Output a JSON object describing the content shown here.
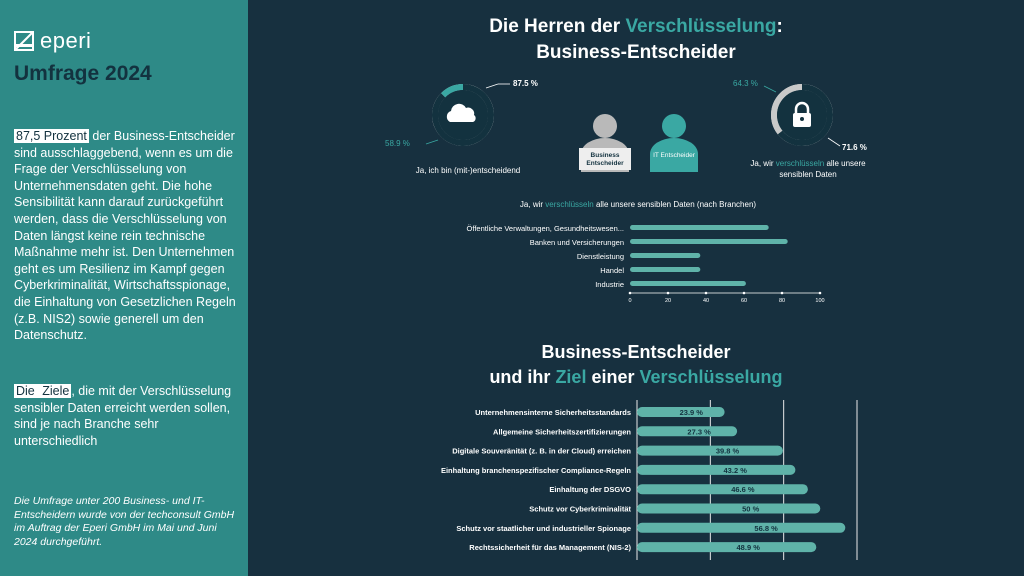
{
  "sidebar": {
    "logo_text": "eperi",
    "title": "Umfrage 2024",
    "p1_highlight": "87,5 Prozent",
    "p1_text": " der Business-Entscheider sind ausschlaggebend, wenn es um die Frage der Verschlüsselung von Unternehmensdaten geht. Die hohe Sensibilität kann darauf zurückgeführt werden, dass die Verschlüsselung von Daten längst keine rein technische Maßnahme mehr ist. Den Unternehmen geht es um Resilienz im Kampf gegen Cyberkriminalität, Wirtschaftsspionage, die Einhaltung von Gesetzlichen Regeln (z.B. NIS2) sowie generell um den Datenschutz.",
    "p2_pre": "Die ",
    "p2_highlight": "Ziele",
    "p2_text": ", die mit der Verschlüsselung sensibler Daten erreicht werden sollen, sind je nach Branche sehr unterschiedlich",
    "note": "Die Umfrage unter 200 Business- und IT-Entscheidern wurde von der techconsult GmbH im Auftrag der Eperi GmbH im Mai und Juni 2024 durchgeführt."
  },
  "heading1": {
    "pre": "Die Herren der ",
    "accent": "Verschlüsselung",
    "post": ":",
    "line2": "Business-Entscheider"
  },
  "heading2": {
    "line1": "Business-Entscheider",
    "pre": "und ihr ",
    "accent1": "Ziel",
    "mid": " einer ",
    "accent2": "Verschlüsselung"
  },
  "colors": {
    "accent": "#3aa8a3",
    "bar": "#5fb3a9",
    "bg": "#17303f",
    "sidebar": "#2e8a87",
    "ring_grey": "#c9c9c9"
  },
  "donut_left": {
    "icon": "cloud-icon",
    "label_top": "87.5 %",
    "label_side": "58.9 %",
    "caption": "Ja, ich bin (mit-)entscheidend",
    "value_dark": 87.5,
    "value_accent": 58.9
  },
  "donut_right": {
    "icon": "lock-icon",
    "label_top": "64.3 %",
    "label_side": "71.6 %",
    "caption_pre": "Ja, wir ",
    "caption_accent": "verschlüsseln",
    "caption_post": " alle unsere",
    "caption_line2": "sensiblen Daten",
    "value_dark": 64.3,
    "value_grey": 71.6
  },
  "persons": {
    "business": "Business Entscheider",
    "it": "IT Entscheider"
  },
  "chart_data": [
    {
      "type": "bar",
      "orientation": "horizontal",
      "title_pre": "Ja, wir ",
      "title_accent": "verschlüsseln",
      "title_post": " alle unsere sensiblen Daten (nach Branchen)",
      "categories": [
        "Öffentliche Verwaltungen, Gesundheitswesen...",
        "Banken und Versicherungen",
        "Dienstleistung",
        "Handel",
        "Industrie"
      ],
      "values": [
        73,
        83,
        37,
        37,
        61
      ],
      "xlim": [
        0,
        100
      ],
      "xticks": [
        "0",
        "20",
        "40",
        "60",
        "80",
        "100"
      ]
    },
    {
      "type": "bar",
      "orientation": "horizontal",
      "categories": [
        "Unternehmensinterne Sicherheitsstandards",
        "Allgemeine Sicherheitszertifizierungen",
        "Digitale Souveränität (z. B. in der Cloud) erreichen",
        "Einhaltung branchenspezifischer Compliance-Regeln",
        "Einhaltung der DSGVO",
        "Schutz vor Cyberkriminalität",
        "Schutz vor staatlicher und industrieller Spionage",
        "Rechtssicherheit für das Management (NIS-2)"
      ],
      "values": [
        23.9,
        27.3,
        39.8,
        43.2,
        46.6,
        50,
        56.8,
        48.9
      ],
      "labels": [
        "23.9 %",
        "27.3 %",
        "39.8 %",
        "43.2 %",
        "46.6 %",
        "50 %",
        "56.8 %",
        "48.9 %"
      ],
      "xlim": [
        0,
        60
      ]
    }
  ]
}
